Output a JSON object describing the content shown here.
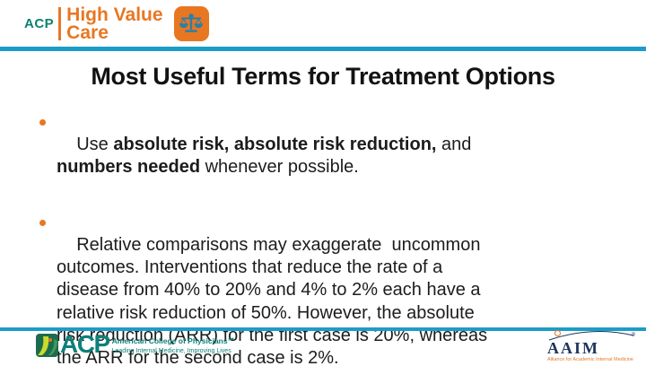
{
  "colors": {
    "rule_teal": "#1e9cc8",
    "brand_orange": "#e87722",
    "acp_teal": "#0d8070",
    "footer_teal": "#0d807a",
    "aaim_navy": "#1c355e",
    "body_text": "#1c1c1c"
  },
  "header": {
    "acp": "ACP",
    "product_line1": "High Value",
    "product_line2": "Care"
  },
  "title": "Most Useful Terms for Treatment Options",
  "bullets": [
    {
      "runs": [
        {
          "t": "Use ",
          "b": false
        },
        {
          "t": "absolute risk,",
          "b": true
        },
        {
          "t": " ",
          "b": false
        },
        {
          "t": "absolute risk reduction,",
          "b": true
        },
        {
          "t": " and\n",
          "b": false
        },
        {
          "t": "numbers needed",
          "b": true
        },
        {
          "t": " whenever possible.",
          "b": false
        }
      ]
    },
    {
      "runs": [
        {
          "t": "Relative comparisons may exaggerate  uncommon\noutcomes. Interventions that reduce the rate of a\ndisease from 40% to 20% and 4% to 2% each have a\nrelative risk reduction of 50%. However, the absolute\nrisk reduction (ARR) for the first case is 20%, whereas\nthe ARR for the second case is 2%.",
          "b": false
        }
      ]
    }
  ],
  "footer": {
    "acp_abbr": "ACP",
    "acp_name": "American College of Physicians℠",
    "acp_tagline": "Leading Internal Medicine, Improving Lives",
    "aaim_abbr": "AAIM",
    "aaim_reg": "®",
    "aaim_tagline": "Alliance for Academic Internal Medicine"
  }
}
